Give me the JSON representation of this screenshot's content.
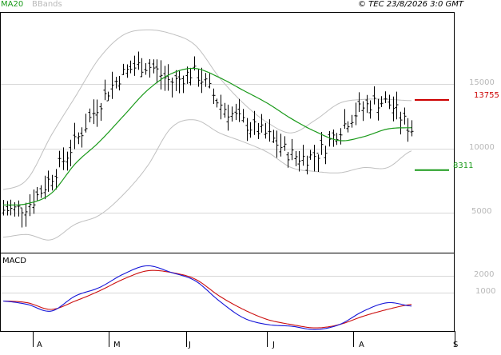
{
  "header": {
    "legend_ma": "MA20",
    "legend_bbands": "BBands",
    "source": "© TEC 23/8/2026 3:0 GMT"
  },
  "price_panel": {
    "y_ticks": [
      "5000",
      "10000",
      "15000"
    ],
    "ylim": [
      2500,
      20500
    ],
    "levels": {
      "resistance_label": "13755",
      "resistance_value": 13755,
      "resistance_color": "#cc0000",
      "support_label": "8311",
      "support_value": 8311,
      "support_color": "#1a9a1a"
    }
  },
  "macd_panel": {
    "title": "MACD",
    "y_ticks": [
      "1000",
      "2000"
    ],
    "ylim": [
      -1500,
      3800
    ]
  },
  "x_ticks": [
    "A",
    "M",
    "J",
    "J",
    "A",
    "S"
  ],
  "colors": {
    "ma20": "#1a9a1a",
    "bbands": "#c0c0c0",
    "macd": "#1515d8",
    "signal": "#cc1010",
    "grid": "#d8d8d8",
    "frame": "#000000"
  },
  "chart_data": [
    {
      "type": "line",
      "title": "",
      "series": [
        {
          "name": "MA20",
          "values": [
            5600,
            5700,
            6500,
            8800,
            10500,
            12500,
            14500,
            15800,
            16200,
            15500,
            14500,
            13500,
            12300,
            11300,
            10600,
            10900,
            11500,
            11600
          ]
        },
        {
          "name": "BBands",
          "values": [
            6800,
            7600,
            11000,
            14000,
            17000,
            18800,
            19200,
            18900,
            18000,
            15500,
            13500,
            12000,
            11200,
            12200,
            13500,
            13800,
            13800,
            13700
          ]
        },
        {
          "name": "BBands",
          "values": [
            3100,
            3300,
            2900,
            4100,
            4800,
            6400,
            8600,
            11600,
            12200,
            11200,
            10500,
            9700,
            8500,
            8200,
            8100,
            8500,
            8500,
            9800
          ]
        },
        {
          "name": "",
          "values": [
            5200,
            5600,
            7800,
            10500,
            13500,
            15800,
            16400,
            15200,
            15800,
            13500,
            12000,
            11000,
            9500,
            9500,
            11500,
            13200,
            13500,
            11500
          ]
        }
      ],
      "x": [
        "A",
        "",
        "",
        "M",
        "",
        "",
        "J",
        "",
        "",
        "J",
        "",
        "",
        "",
        "A",
        "",
        "",
        "",
        "S"
      ]
    },
    {
      "type": "line",
      "title": "MACD",
      "series": [
        {
          "name": "",
          "values": [
            500,
            300,
            -100,
            800,
            1300,
            2100,
            2600,
            2200,
            1700,
            500,
            -500,
            -900,
            -1000,
            -1200,
            -900,
            -100,
            400,
            200
          ]
        },
        {
          "name": "",
          "values": [
            500,
            400,
            0,
            500,
            1100,
            1800,
            2300,
            2200,
            1800,
            800,
            0,
            -600,
            -900,
            -1100,
            -900,
            -400,
            0,
            300
          ]
        }
      ],
      "yticks": [
        1000,
        2000
      ],
      "ylim": [
        -1500,
        3800
      ]
    }
  ]
}
